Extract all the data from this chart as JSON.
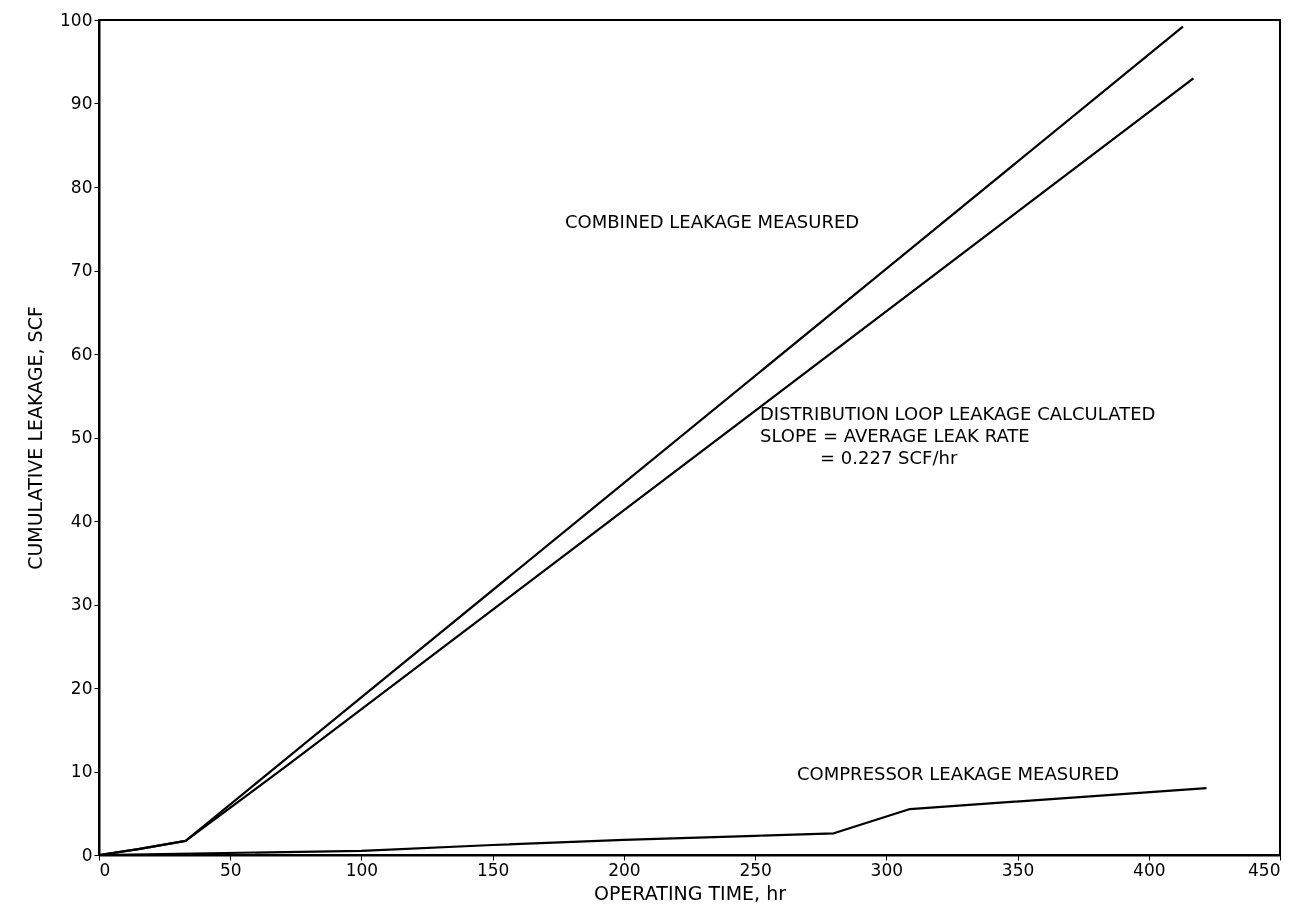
{
  "chart_data": {
    "type": "line",
    "xlabel": "OPERATING TIME, hr",
    "ylabel": "CUMULATIVE LEAKAGE, SCF",
    "xlim": [
      0,
      450
    ],
    "ylim": [
      0,
      100
    ],
    "xticks": [
      0,
      50,
      100,
      150,
      200,
      250,
      300,
      350,
      400,
      450
    ],
    "yticks": [
      0,
      10,
      20,
      30,
      40,
      50,
      60,
      70,
      80,
      90,
      100
    ],
    "grid": false,
    "marker": "none",
    "line_style": "solid",
    "series": [
      {
        "name": "COMBINED LEAKAGE MEASURED",
        "color": "#000000",
        "x": [
          0,
          15,
          33,
          413
        ],
        "values": [
          0,
          0.7,
          1.7,
          99.2
        ]
      },
      {
        "name": "DISTRIBUTION LOOP LEAKAGE CALCULATED",
        "color": "#000000",
        "x": [
          0,
          15,
          33,
          75,
          417
        ],
        "values": [
          0,
          0.7,
          1.7,
          11.5,
          93
        ]
      },
      {
        "name": "COMPRESSOR LEAKAGE MEASURED",
        "color": "#000000",
        "x": [
          0,
          100,
          150,
          200,
          250,
          280,
          309,
          422
        ],
        "values": [
          0,
          0.5,
          1.2,
          1.8,
          2.3,
          2.6,
          5.5,
          8
        ]
      }
    ],
    "annotations": [
      "SLOPE = AVERAGE LEAK RATE",
      "= 0.227 SCF/hr"
    ]
  }
}
